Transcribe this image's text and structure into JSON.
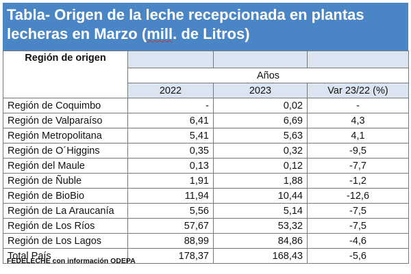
{
  "title": {
    "line1": "Tabla- Origen de la leche recepcionada en plantas",
    "line2_pre": "lecheras en Marzo (",
    "line2_und": "mill",
    "line2_post": ". de Litros)"
  },
  "headers": {
    "region": "Región de origen",
    "anos": "Años",
    "y2022": "2022",
    "y2023": "2023",
    "var": "Var 23/22 (%)"
  },
  "rows": [
    {
      "region": "Región de Coquimbo",
      "v2022": "-",
      "v2023": "0,02",
      "var": "-"
    },
    {
      "region": "Región de Valparaíso",
      "v2022": "6,41",
      "v2023": "6,69",
      "var": "4,3"
    },
    {
      "region": "Región Metropolitana",
      "v2022": "5,41",
      "v2023": "5,63",
      "var": "4,1"
    },
    {
      "region": "Región de O´Higgins",
      "v2022": "0,35",
      "v2023": "0,32",
      "var": "-9,5"
    },
    {
      "region": "Región del Maule",
      "v2022": "0,13",
      "v2023": "0,12",
      "var": "-7,7"
    },
    {
      "region": "Región de Ñuble",
      "v2022": "1,91",
      "v2023": "1,88",
      "var": "-1,2"
    },
    {
      "region": "Región de BioBio",
      "v2022": "11,94",
      "v2023": "10,44",
      "var": "-12,6"
    },
    {
      "region": "Región de La Araucanía",
      "v2022": "5,56",
      "v2023": "5,14",
      "var": "-7,5"
    },
    {
      "region": "Región de Los Ríos",
      "v2022": "57,67",
      "v2023": "53,32",
      "var": "-7,5"
    },
    {
      "region": "Región de Los Lagos",
      "v2022": "88,99",
      "v2023": "84,86",
      "var": "-4,6"
    }
  ],
  "total": {
    "region": "Total País",
    "v2022": "178,37",
    "v2023": "168,43",
    "var": "-5,6"
  },
  "source": "FEDELECHE con información ODEPA"
}
